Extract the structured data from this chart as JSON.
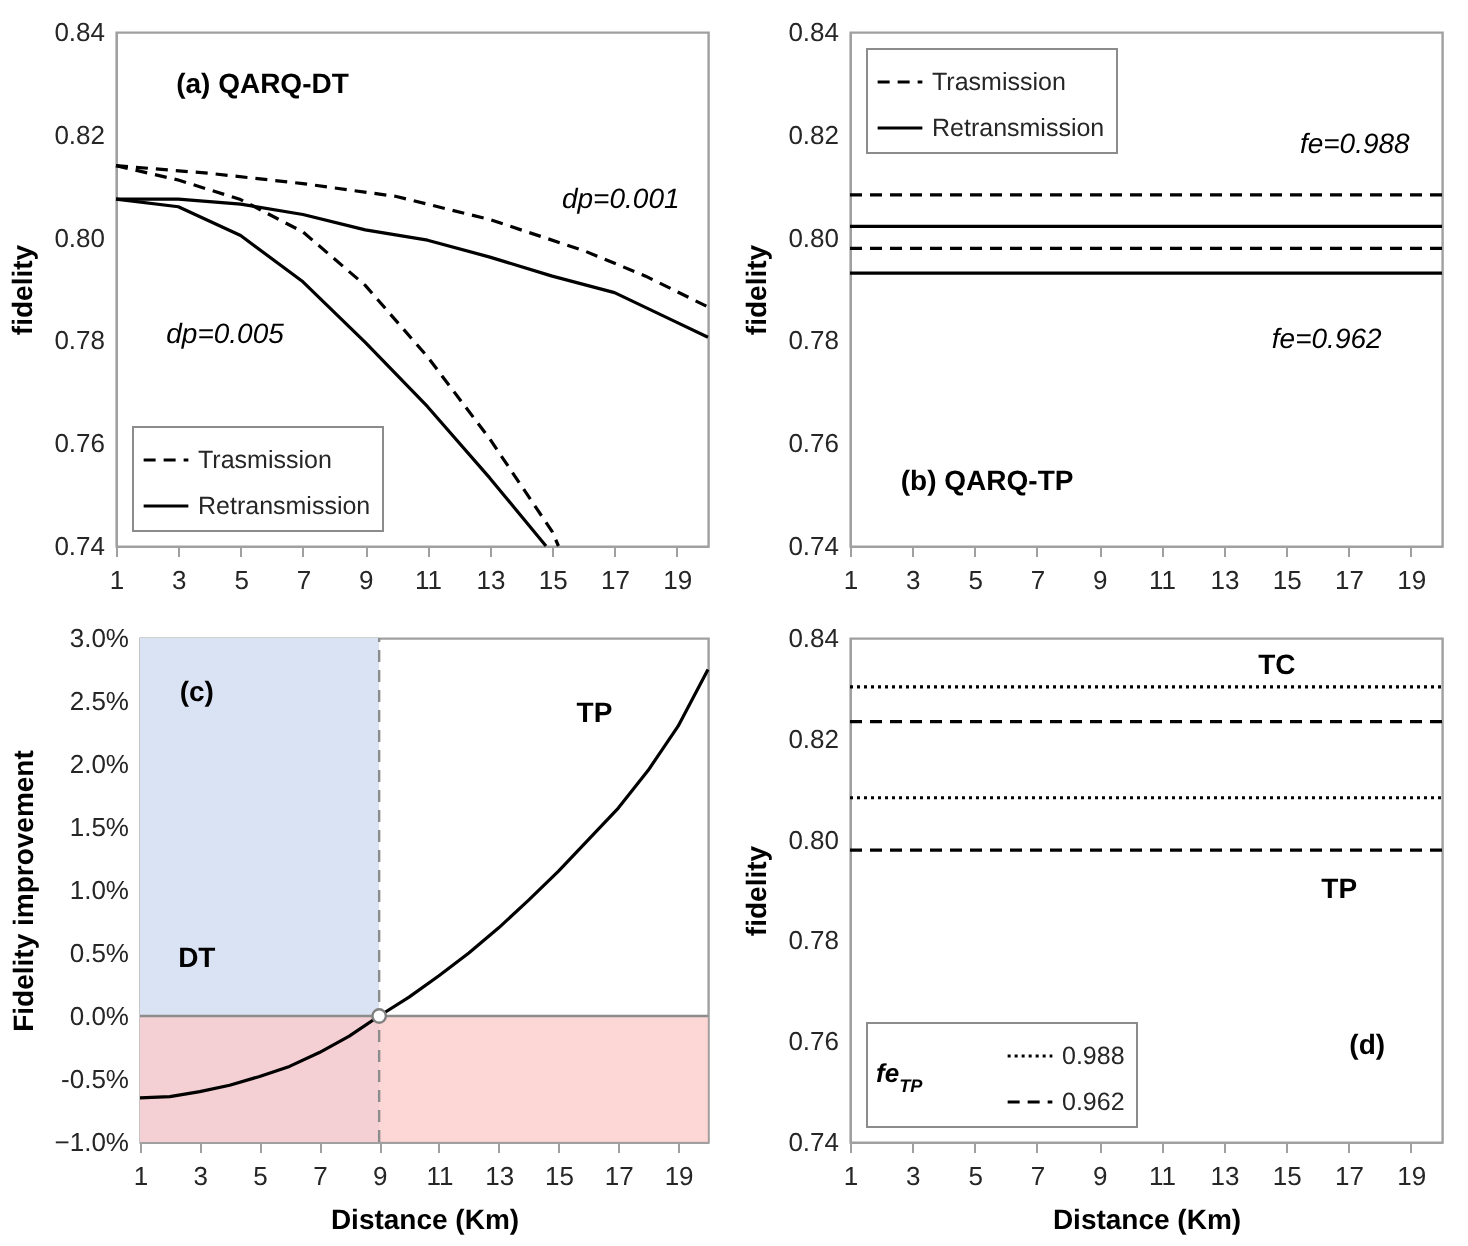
{
  "chart_data": [
    {
      "type": "line",
      "ylabel": "fidelity",
      "xlim": [
        1,
        20
      ],
      "xticks": [
        1,
        3,
        5,
        7,
        9,
        11,
        13,
        15,
        17,
        19
      ],
      "ylim": [
        0.74,
        0.84
      ],
      "yticks": [
        0.74,
        0.76,
        0.78,
        {
          "value": 0.8,
          "label": "0.80"
        },
        0.82,
        0.84
      ],
      "grid": false,
      "legend": "bottom left",
      "marker": "none",
      "annotations": [
        "(a) QARQ-DT",
        "dp=0.001",
        "dp=0.005"
      ],
      "series": [
        {
          "name": "Trasmission",
          "color": "#000000",
          "line_style": "dashed",
          "x": [
            1,
            4,
            7,
            10,
            13,
            16,
            18,
            20
          ],
          "values": [
            0.814,
            0.8125,
            0.8105,
            0.808,
            0.8035,
            0.7975,
            0.7925,
            0.7865
          ]
        },
        {
          "name": "Retransmission",
          "color": "#000000",
          "line_style": "solid",
          "x": [
            1,
            3,
            5,
            7,
            9,
            11,
            13,
            15,
            17,
            19,
            20
          ],
          "values": [
            0.8075,
            0.8075,
            0.8065,
            0.8045,
            0.8015,
            0.7995,
            0.7962,
            0.7925,
            0.7893,
            0.7835,
            0.7806
          ]
        },
        {
          "color": "#000000",
          "line_style": "dashed",
          "x": [
            1,
            3,
            5,
            7,
            9,
            11,
            13,
            15,
            15.2
          ],
          "values": [
            0.814,
            0.8112,
            0.8074,
            0.8011,
            0.7907,
            0.7768,
            0.7608,
            0.7428,
            0.74
          ]
        },
        {
          "color": "#000000",
          "line_style": "solid",
          "x": [
            1,
            3,
            5,
            7,
            9,
            11,
            13,
            14.8
          ],
          "values": [
            0.8075,
            0.806,
            0.8004,
            0.7914,
            0.7796,
            0.7671,
            0.7532,
            0.74
          ]
        }
      ]
    },
    {
      "type": "line",
      "ylabel": "fidelity",
      "xlim": [
        1,
        20
      ],
      "xticks": [
        1,
        3,
        5,
        7,
        9,
        11,
        13,
        15,
        17,
        19
      ],
      "ylim": [
        0.74,
        0.84
      ],
      "yticks": [
        0.74,
        0.76,
        0.78,
        {
          "value": 0.8,
          "label": "0.80"
        },
        0.82,
        0.84
      ],
      "grid": false,
      "legend": "top left",
      "marker": "none",
      "annotations": [
        "fe=0.988",
        "fe=0.962",
        "(b) QARQ-TP"
      ],
      "series": [
        {
          "name": "Trasmission",
          "color": "#000000",
          "line_style": "dashed",
          "x": [
            1,
            20
          ],
          "values": [
            0.8083,
            0.8083
          ]
        },
        {
          "name": "Retransmission",
          "color": "#000000",
          "line_style": "solid",
          "x": [
            1,
            20
          ],
          "values": [
            0.8022,
            0.8022
          ]
        },
        {
          "color": "#000000",
          "line_style": "dashed",
          "x": [
            1,
            20
          ],
          "values": [
            0.7979,
            0.7979
          ]
        },
        {
          "color": "#000000",
          "line_style": "solid",
          "x": [
            1,
            20
          ],
          "values": [
            0.7931,
            0.7931
          ]
        }
      ]
    },
    {
      "type": "line",
      "xlabel": "Distance (Km)",
      "ylabel": "Fidelity improvement",
      "xlim": [
        1,
        20
      ],
      "xticks": [
        1,
        3,
        5,
        7,
        9,
        11,
        13,
        15,
        17,
        19
      ],
      "ylim": [
        -1,
        3
      ],
      "yticks": [
        {
          "value": -1,
          "label": "−1.0%"
        },
        {
          "value": -0.5,
          "label": "-0.5%"
        },
        {
          "value": 0,
          "label": "0.0%"
        },
        {
          "value": 0.5,
          "label": "0.5%"
        },
        {
          "value": 1,
          "label": "1.0%"
        },
        {
          "value": 1.5,
          "label": "1.5%"
        },
        {
          "value": 2,
          "label": "2.0%"
        },
        {
          "value": 2.5,
          "label": "2.5%"
        },
        {
          "value": 3,
          "label": "3.0%"
        }
      ],
      "grid": false,
      "marker": "none",
      "annotations": [
        "(c)",
        "TP",
        "DT"
      ],
      "bands": [
        {
          "axis": "x",
          "from": 1,
          "to": 9,
          "color": "#dae3f3"
        },
        {
          "axis": "y",
          "from": -1,
          "to": 0,
          "color": "#fcc8c8"
        }
      ],
      "ref_lines": [
        {
          "axis": "y",
          "value": 0,
          "color": "#8c8c8c",
          "line_style": "solid"
        },
        {
          "axis": "x",
          "value": 9,
          "color": "#8c8c8c",
          "line_style": "dashed"
        }
      ],
      "series": [
        {
          "color": "#000000",
          "line_style": "solid",
          "x": [
            1,
            2,
            3,
            4,
            5,
            6,
            7,
            8,
            9,
            10,
            11,
            12,
            13,
            14,
            15,
            16,
            17,
            18,
            19,
            20
          ],
          "values": [
            -0.65,
            -0.64,
            -0.6,
            -0.55,
            -0.48,
            -0.4,
            -0.29,
            -0.16,
            0,
            0.15,
            0.32,
            0.5,
            0.7,
            0.92,
            1.15,
            1.4,
            1.65,
            1.95,
            2.3,
            2.75
          ]
        },
        {
          "type": "scatter",
          "color": "#ffffff",
          "marker": "circle",
          "x": [
            9
          ],
          "values": [
            0
          ]
        }
      ]
    },
    {
      "type": "line",
      "xlabel": "Distance (Km)",
      "ylabel": "fidelity",
      "xlim": [
        1,
        20
      ],
      "xticks": [
        1,
        3,
        5,
        7,
        9,
        11,
        13,
        15,
        17,
        19
      ],
      "ylim": [
        0.74,
        0.84
      ],
      "yticks": [
        0.74,
        0.76,
        0.78,
        {
          "value": 0.8,
          "label": "0.80"
        },
        0.82,
        0.84
      ],
      "grid": false,
      "legend": "bottom left",
      "legend_title": "fe$_{TP}$",
      "marker": "none",
      "annotations": [
        "TC",
        "TP",
        "(d)"
      ],
      "series": [
        {
          "name": "0.988",
          "color": "#000000",
          "line_style": "dotted",
          "x": [
            1,
            20
          ],
          "values": [
            0.8303,
            0.8303
          ]
        },
        {
          "name": "0.962",
          "color": "#000000",
          "line_style": "dashed",
          "x": [
            1,
            20
          ],
          "values": [
            0.8234,
            0.8234
          ]
        },
        {
          "color": "#000000",
          "line_style": "dotted",
          "x": [
            1,
            20
          ],
          "values": [
            0.8083,
            0.8083
          ]
        },
        {
          "color": "#000000",
          "line_style": "dashed",
          "x": [
            1,
            20
          ],
          "values": [
            0.7979,
            0.7979
          ]
        }
      ]
    }
  ]
}
